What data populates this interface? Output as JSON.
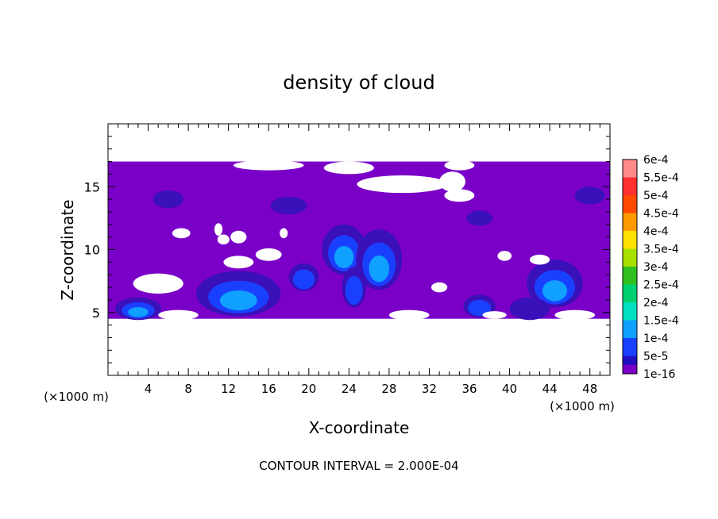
{
  "chart_data": {
    "type": "heatmap",
    "title": "density of cloud",
    "xlabel": "X-coordinate",
    "ylabel": "Z-coordinate",
    "x_unit_note_left": "(×1000 m)",
    "x_unit_note_right": "(×1000 m)",
    "footer": "CONTOUR INTERVAL = 2.000E-04",
    "xlim": [
      0,
      50
    ],
    "ylim": [
      0,
      20
    ],
    "x_ticks": [
      "4",
      "8",
      "12",
      "16",
      "20",
      "24",
      "28",
      "32",
      "36",
      "40",
      "44",
      "48"
    ],
    "y_ticks": [
      "5",
      "10",
      "15"
    ],
    "colorbar": {
      "labels": [
        "6e-4",
        "5.5e-4",
        "5e-4",
        "4.5e-4",
        "4e-4",
        "3.5e-4",
        "3e-4",
        "2.5e-4",
        "2e-4",
        "1.5e-4",
        "1e-4",
        "5e-5",
        "1e-16"
      ],
      "colors": [
        "#ff8a8a",
        "#ff3030",
        "#ff4a00",
        "#ff9a00",
        "#ffe000",
        "#a8e000",
        "#30c020",
        "#00d070",
        "#00e0c0",
        "#10a0ff",
        "#1a40ff",
        "#2010c0",
        "#7a00c8"
      ]
    },
    "cloud_layer_z_range": [
      4.5,
      17.0
    ],
    "field_colors": {
      "base": "#7a00c8",
      "level_5e-5": "#3a10b8",
      "level_1e-4": "#1a40ff",
      "level_1.5e-4": "#10a0ff"
    },
    "blobs": [
      {
        "x": 3.0,
        "z": 5.3,
        "rx": 2.3,
        "rz": 0.9,
        "level": 3
      },
      {
        "x": 13.0,
        "z": 6.5,
        "rx": 4.2,
        "rz": 1.8,
        "level": 3
      },
      {
        "x": 19.5,
        "z": 7.8,
        "rx": 1.5,
        "rz": 1.1,
        "level": 2
      },
      {
        "x": 23.5,
        "z": 10.0,
        "rx": 2.2,
        "rz": 2.0,
        "level": 3
      },
      {
        "x": 27.0,
        "z": 9.2,
        "rx": 2.3,
        "rz": 2.4,
        "level": 3
      },
      {
        "x": 24.5,
        "z": 7.0,
        "rx": 1.2,
        "rz": 1.6,
        "level": 2
      },
      {
        "x": 37.0,
        "z": 5.5,
        "rx": 1.6,
        "rz": 0.9,
        "level": 2
      },
      {
        "x": 44.5,
        "z": 7.3,
        "rx": 2.8,
        "rz": 1.9,
        "level": 3
      },
      {
        "x": 42.0,
        "z": 5.3,
        "rx": 2.0,
        "rz": 0.9,
        "level": 1
      },
      {
        "x": 6.0,
        "z": 14.0,
        "rx": 1.5,
        "rz": 0.7,
        "level": 1
      },
      {
        "x": 18.0,
        "z": 13.5,
        "rx": 1.8,
        "rz": 0.7,
        "level": 1
      },
      {
        "x": 48.0,
        "z": 14.3,
        "rx": 1.5,
        "rz": 0.7,
        "level": 1
      },
      {
        "x": 37.0,
        "z": 12.5,
        "rx": 1.3,
        "rz": 0.6,
        "level": 1
      }
    ],
    "gaps": [
      {
        "x": 7.3,
        "z": 11.3,
        "rx": 0.9,
        "rz": 0.4
      },
      {
        "x": 11.0,
        "z": 11.6,
        "rx": 0.4,
        "rz": 0.5
      },
      {
        "x": 11.5,
        "z": 10.8,
        "rx": 0.6,
        "rz": 0.4
      },
      {
        "x": 13.0,
        "z": 11.0,
        "rx": 0.8,
        "rz": 0.5
      },
      {
        "x": 17.5,
        "z": 11.3,
        "rx": 0.4,
        "rz": 0.4
      },
      {
        "x": 13.0,
        "z": 9.0,
        "rx": 1.5,
        "rz": 0.5
      },
      {
        "x": 16.0,
        "z": 9.6,
        "rx": 1.3,
        "rz": 0.5
      },
      {
        "x": 5.0,
        "z": 7.3,
        "rx": 2.5,
        "rz": 0.8
      },
      {
        "x": 35.0,
        "z": 14.3,
        "rx": 1.5,
        "rz": 0.5
      },
      {
        "x": 29.3,
        "z": 15.2,
        "rx": 4.5,
        "rz": 0.7
      },
      {
        "x": 34.3,
        "z": 15.4,
        "rx": 1.3,
        "rz": 0.8
      },
      {
        "x": 16.0,
        "z": 16.7,
        "rx": 3.5,
        "rz": 0.4
      },
      {
        "x": 24.0,
        "z": 16.5,
        "rx": 2.5,
        "rz": 0.5
      },
      {
        "x": 35.0,
        "z": 16.7,
        "rx": 1.5,
        "rz": 0.4
      },
      {
        "x": 39.5,
        "z": 9.5,
        "rx": 0.7,
        "rz": 0.4
      },
      {
        "x": 43.0,
        "z": 9.2,
        "rx": 1.0,
        "rz": 0.4
      },
      {
        "x": 33.0,
        "z": 7.0,
        "rx": 0.8,
        "rz": 0.4
      },
      {
        "x": 38.5,
        "z": 4.8,
        "rx": 1.2,
        "rz": 0.3
      },
      {
        "x": 46.5,
        "z": 4.8,
        "rx": 2.0,
        "rz": 0.4
      },
      {
        "x": 7.0,
        "z": 4.8,
        "rx": 2.0,
        "rz": 0.4
      },
      {
        "x": 30.0,
        "z": 4.8,
        "rx": 2.0,
        "rz": 0.4
      }
    ]
  }
}
